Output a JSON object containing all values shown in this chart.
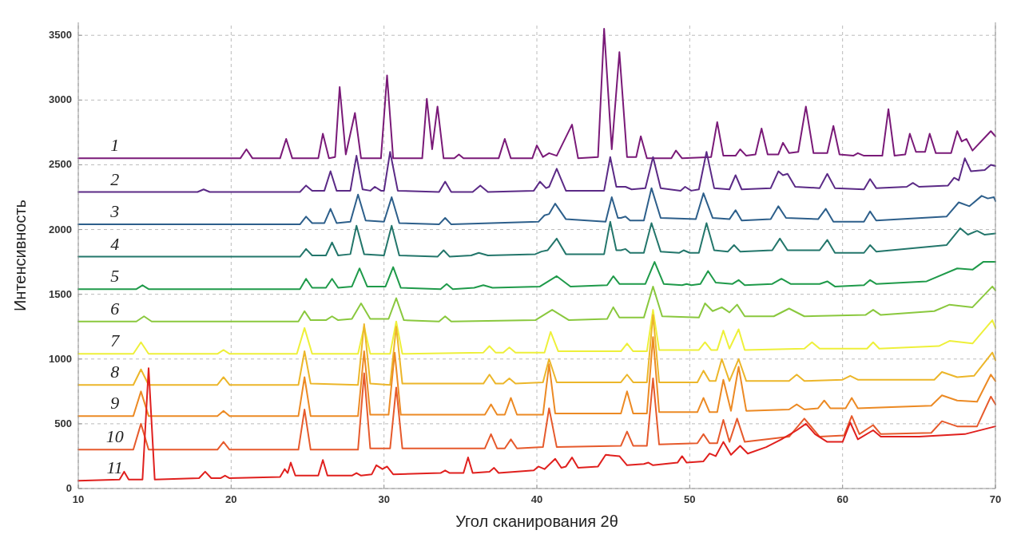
{
  "chart_data": {
    "type": "line",
    "xlabel": "Угол сканирования 2θ",
    "ylabel": "Интенсивность",
    "xlim": [
      10,
      70
    ],
    "xticks": [
      10,
      20,
      30,
      40,
      50,
      60,
      70
    ],
    "ylim": [
      0,
      3600
    ],
    "yticks": [
      0,
      500,
      1000,
      1500,
      2000,
      2500,
      3000,
      3500
    ],
    "grid": true,
    "series": [
      {
        "name": "1",
        "color": "#7a1a78",
        "x": [
          10,
          20.6,
          21,
          21.4,
          23.2,
          23.6,
          24,
          25.7,
          26,
          26.4,
          26.8,
          27.1,
          27.5,
          28.1,
          28.5,
          29.8,
          30.2,
          30.6,
          32.5,
          32.8,
          33.15,
          33.5,
          33.9,
          34.6,
          34.9,
          35.2,
          37.5,
          37.9,
          38.3,
          39.7,
          40,
          40.4,
          40.8,
          41.3,
          42.3,
          42.7,
          44,
          44.4,
          44.9,
          45.4,
          45.9,
          46.5,
          46.8,
          47.2,
          48.8,
          49.1,
          49.5,
          51.4,
          51.8,
          52.2,
          53,
          53.3,
          53.7,
          54.3,
          54.7,
          55.1,
          55.8,
          56.1,
          56.5,
          57.1,
          57.6,
          58.1,
          59,
          59.4,
          59.8,
          60.7,
          61,
          61.4,
          62.6,
          63,
          63.4,
          64.1,
          64.4,
          64.8,
          65.4,
          65.7,
          66.1,
          67.1,
          67.5,
          67.8,
          68.1,
          68.5,
          69.7,
          70
        ],
        "values": [
          2550,
          2550,
          2620,
          2550,
          2550,
          2700,
          2550,
          2550,
          2740,
          2550,
          2560,
          3100,
          2580,
          2900,
          2550,
          2550,
          3190,
          2550,
          2550,
          3010,
          2620,
          2950,
          2550,
          2550,
          2580,
          2550,
          2550,
          2700,
          2550,
          2550,
          2650,
          2560,
          2590,
          2570,
          2810,
          2550,
          2560,
          3550,
          2620,
          3370,
          2560,
          2560,
          2720,
          2550,
          2550,
          2610,
          2550,
          2560,
          2830,
          2570,
          2570,
          2620,
          2570,
          2580,
          2780,
          2580,
          2580,
          2670,
          2590,
          2600,
          2950,
          2590,
          2590,
          2800,
          2580,
          2570,
          2590,
          2570,
          2570,
          2930,
          2570,
          2580,
          2740,
          2600,
          2600,
          2740,
          2590,
          2590,
          2760,
          2680,
          2700,
          2610,
          2760,
          2720
        ]
      },
      {
        "name": "2",
        "color": "#5b2a86",
        "x": [
          10,
          17.8,
          18.2,
          18.6,
          24.5,
          24.9,
          25.3,
          26.1,
          26.5,
          26.9,
          27.8,
          28.2,
          28.6,
          29.1,
          29.4,
          29.8,
          30,
          30.4,
          30.9,
          33.6,
          34,
          34.4,
          35.8,
          36.3,
          36.8,
          39.8,
          40.2,
          40.6,
          40.8,
          41.3,
          41.9,
          44.4,
          44.8,
          45.2,
          45.5,
          45.8,
          46.2,
          47.1,
          47.6,
          48.1,
          49.4,
          49.7,
          50.1,
          50.6,
          51.1,
          51.6,
          52.6,
          53,
          53.4,
          55.3,
          55.8,
          56.1,
          56.4,
          56.9,
          58.5,
          59,
          59.5,
          61.4,
          61.8,
          62.2,
          64.2,
          64.6,
          65,
          66.9,
          67.3,
          67.6,
          68,
          68.4,
          69.3,
          69.7,
          70
        ],
        "values": [
          2290,
          2290,
          2310,
          2290,
          2290,
          2340,
          2300,
          2300,
          2450,
          2300,
          2300,
          2570,
          2310,
          2300,
          2330,
          2300,
          2300,
          2600,
          2300,
          2290,
          2370,
          2290,
          2290,
          2340,
          2290,
          2300,
          2370,
          2320,
          2330,
          2470,
          2300,
          2300,
          2560,
          2330,
          2330,
          2330,
          2310,
          2320,
          2560,
          2320,
          2300,
          2330,
          2300,
          2310,
          2600,
          2320,
          2310,
          2420,
          2310,
          2320,
          2450,
          2420,
          2430,
          2330,
          2320,
          2430,
          2320,
          2310,
          2390,
          2320,
          2330,
          2360,
          2330,
          2340,
          2400,
          2380,
          2550,
          2450,
          2460,
          2500,
          2490
        ]
      },
      {
        "name": "3",
        "color": "#2d5f8b",
        "x": [
          10,
          24.5,
          24.9,
          25.3,
          26.1,
          26.5,
          26.9,
          27.8,
          28.3,
          28.8,
          30,
          30.5,
          31,
          33.6,
          34,
          34.4,
          40.1,
          40.5,
          40.8,
          41.2,
          41.9,
          44.5,
          44.9,
          45.3,
          45.5,
          45.8,
          46.1,
          47,
          47.5,
          48.1,
          50.4,
          50.9,
          51.5,
          52.6,
          53,
          53.4,
          55.3,
          55.8,
          56.3,
          58.4,
          58.9,
          59.4,
          61.4,
          61.8,
          62.2,
          66.8,
          67.6,
          68.3,
          69.1,
          69.5,
          69.9,
          70
        ],
        "values": [
          2040,
          2040,
          2100,
          2050,
          2050,
          2160,
          2050,
          2060,
          2270,
          2070,
          2060,
          2250,
          2050,
          2040,
          2090,
          2040,
          2060,
          2110,
          2120,
          2200,
          2080,
          2060,
          2250,
          2090,
          2090,
          2100,
          2070,
          2070,
          2320,
          2090,
          2080,
          2280,
          2090,
          2080,
          2150,
          2070,
          2080,
          2180,
          2090,
          2080,
          2160,
          2060,
          2060,
          2140,
          2070,
          2100,
          2210,
          2180,
          2260,
          2240,
          2250,
          2220
        ]
      },
      {
        "name": "4",
        "color": "#23766b",
        "x": [
          10,
          24.5,
          24.9,
          25.3,
          26.2,
          26.6,
          27,
          27.8,
          28.2,
          28.7,
          30,
          30.5,
          31,
          33.5,
          33.9,
          34.3,
          35.7,
          36.2,
          36.8,
          39.9,
          40.3,
          40.7,
          41.3,
          41.9,
          44.4,
          44.8,
          45.2,
          45.5,
          45.8,
          46.1,
          47,
          47.5,
          48.1,
          49.3,
          49.6,
          50,
          50.6,
          51.1,
          51.6,
          52.5,
          52.9,
          53.3,
          55.4,
          55.9,
          56.4,
          58.5,
          59,
          59.5,
          61.4,
          61.8,
          62.2,
          66.8,
          67.7,
          68.2,
          68.8,
          69.3,
          70
        ],
        "values": [
          1790,
          1790,
          1850,
          1800,
          1800,
          1900,
          1800,
          1810,
          2030,
          1810,
          1800,
          2030,
          1800,
          1790,
          1840,
          1790,
          1800,
          1820,
          1800,
          1810,
          1830,
          1840,
          1930,
          1810,
          1810,
          2060,
          1840,
          1840,
          1850,
          1820,
          1820,
          2050,
          1830,
          1820,
          1840,
          1820,
          1820,
          2050,
          1840,
          1830,
          1880,
          1830,
          1840,
          1930,
          1840,
          1840,
          1920,
          1820,
          1820,
          1880,
          1830,
          1880,
          2010,
          1960,
          1990,
          1960,
          1970
        ]
      },
      {
        "name": "5",
        "color": "#1f9a4a",
        "x": [
          10,
          13.8,
          14.2,
          14.6,
          24.5,
          24.9,
          25.3,
          26.2,
          26.6,
          27,
          27.9,
          28.4,
          28.9,
          30.1,
          30.6,
          31.1,
          33.7,
          34.1,
          34.5,
          35.9,
          36.5,
          37.1,
          40.2,
          41.3,
          42.2,
          44.6,
          45,
          45.4,
          47.1,
          47.7,
          48.3,
          49.5,
          49.8,
          50.1,
          50.7,
          51.2,
          51.7,
          52.8,
          53.2,
          53.6,
          55.4,
          56,
          56.6,
          58.5,
          59,
          59.5,
          61.4,
          61.8,
          62.2,
          65.5,
          67.5,
          68.5,
          69.2,
          70
        ],
        "values": [
          1540,
          1540,
          1570,
          1540,
          1540,
          1620,
          1550,
          1550,
          1620,
          1550,
          1560,
          1700,
          1560,
          1560,
          1710,
          1550,
          1540,
          1580,
          1540,
          1550,
          1570,
          1550,
          1560,
          1640,
          1560,
          1570,
          1640,
          1580,
          1580,
          1750,
          1580,
          1570,
          1580,
          1570,
          1580,
          1680,
          1590,
          1580,
          1610,
          1570,
          1580,
          1620,
          1580,
          1580,
          1600,
          1560,
          1570,
          1610,
          1580,
          1600,
          1700,
          1690,
          1750,
          1750
        ]
      },
      {
        "name": "6",
        "color": "#8ac83e",
        "x": [
          10,
          13.8,
          14.3,
          14.8,
          24.4,
          24.8,
          25.2,
          26.2,
          26.6,
          27,
          27.9,
          28.5,
          29.1,
          30.3,
          30.8,
          31.3,
          33.6,
          34,
          34.4,
          39.9,
          41,
          42.1,
          44.6,
          45,
          45.4,
          47,
          47.6,
          48.2,
          50.6,
          51,
          51.5,
          52.1,
          52.6,
          53.1,
          53.6,
          55.5,
          56.5,
          57.5,
          61.5,
          62,
          62.5,
          66,
          67,
          68.5,
          69.8,
          70
        ],
        "values": [
          1290,
          1290,
          1330,
          1290,
          1290,
          1370,
          1300,
          1300,
          1330,
          1300,
          1310,
          1430,
          1310,
          1310,
          1470,
          1300,
          1290,
          1330,
          1290,
          1300,
          1380,
          1300,
          1310,
          1400,
          1320,
          1320,
          1560,
          1330,
          1320,
          1430,
          1370,
          1400,
          1360,
          1420,
          1330,
          1330,
          1390,
          1330,
          1340,
          1380,
          1340,
          1370,
          1420,
          1400,
          1560,
          1530
        ]
      },
      {
        "name": "7",
        "color": "#eef03a",
        "x": [
          10,
          13.6,
          14.1,
          14.6,
          19.1,
          19.5,
          19.9,
          24.3,
          24.8,
          25.3,
          28.3,
          28.7,
          29.1,
          30.4,
          30.8,
          31.2,
          36.5,
          36.9,
          37.3,
          37.8,
          38.2,
          38.6,
          40.5,
          40.9,
          41.4,
          45.5,
          45.9,
          46.3,
          47.2,
          47.6,
          48,
          50.6,
          51,
          51.4,
          51.8,
          52.2,
          52.6,
          53.2,
          53.6,
          57.5,
          58,
          58.5,
          61.6,
          62,
          62.4,
          66.3,
          67,
          68.5,
          69.8,
          70
        ],
        "values": [
          1040,
          1040,
          1130,
          1040,
          1040,
          1070,
          1040,
          1040,
          1240,
          1040,
          1040,
          1250,
          1040,
          1040,
          1290,
          1040,
          1050,
          1100,
          1050,
          1050,
          1090,
          1050,
          1050,
          1210,
          1060,
          1060,
          1120,
          1060,
          1060,
          1380,
          1070,
          1070,
          1130,
          1070,
          1070,
          1220,
          1080,
          1230,
          1070,
          1080,
          1130,
          1080,
          1080,
          1130,
          1080,
          1100,
          1140,
          1120,
          1300,
          1240
        ]
      },
      {
        "name": "8",
        "color": "#ecb62a",
        "x": [
          10,
          13.6,
          14.1,
          14.6,
          19.1,
          19.5,
          19.9,
          24.4,
          24.8,
          25.2,
          28.3,
          28.7,
          29.1,
          30.4,
          30.8,
          31.2,
          36.5,
          36.9,
          37.3,
          37.8,
          38.2,
          38.6,
          40.4,
          40.8,
          41.3,
          45.5,
          45.9,
          46.3,
          47.2,
          47.6,
          48,
          50.5,
          50.9,
          51.3,
          51.7,
          52.1,
          52.6,
          53.2,
          53.7,
          56.5,
          57,
          57.5,
          60,
          60.5,
          61,
          66,
          66.5,
          67.5,
          68.6,
          69.8,
          70
        ],
        "values": [
          800,
          800,
          920,
          800,
          800,
          860,
          800,
          800,
          1060,
          810,
          800,
          1270,
          810,
          800,
          1250,
          810,
          810,
          880,
          810,
          810,
          850,
          810,
          820,
          1000,
          820,
          820,
          880,
          820,
          820,
          1340,
          820,
          820,
          910,
          830,
          830,
          1000,
          830,
          1000,
          830,
          830,
          880,
          830,
          840,
          870,
          840,
          840,
          900,
          860,
          870,
          1050,
          990
        ]
      },
      {
        "name": "9",
        "color": "#ec8a24",
        "x": [
          10,
          13.6,
          14.1,
          14.6,
          19.1,
          19.5,
          19.9,
          24.4,
          24.8,
          25.2,
          28.3,
          28.7,
          29.1,
          30.3,
          30.7,
          31.1,
          36.6,
          37,
          37.4,
          37.9,
          38.3,
          38.7,
          40.4,
          40.8,
          41.2,
          45.5,
          45.9,
          46.3,
          47.2,
          47.6,
          48,
          50.5,
          50.9,
          51.3,
          51.8,
          52.2,
          52.7,
          53.2,
          53.7,
          56.5,
          57,
          57.5,
          58.4,
          58.8,
          59.2,
          60.2,
          60.6,
          61,
          65.8,
          66.5,
          67.5,
          68.8,
          69.7,
          70
        ],
        "values": [
          560,
          560,
          750,
          560,
          560,
          600,
          560,
          560,
          860,
          560,
          560,
          1060,
          570,
          570,
          1050,
          570,
          570,
          650,
          570,
          570,
          700,
          570,
          570,
          960,
          580,
          580,
          750,
          580,
          580,
          1170,
          590,
          590,
          700,
          590,
          590,
          840,
          600,
          940,
          600,
          610,
          650,
          610,
          620,
          680,
          620,
          620,
          700,
          620,
          640,
          720,
          680,
          670,
          880,
          830
        ]
      },
      {
        "name": "10",
        "color": "#e65a2c",
        "x": [
          10,
          13.6,
          14.1,
          14.6,
          19.1,
          19.5,
          19.9,
          24.4,
          24.8,
          25.2,
          28.3,
          28.7,
          29.1,
          30.4,
          30.8,
          31.2,
          36.6,
          37,
          37.4,
          37.9,
          38.3,
          38.7,
          40.4,
          40.8,
          41.3,
          45.5,
          45.9,
          46.3,
          47.2,
          47.6,
          48,
          50.5,
          50.9,
          51.3,
          51.8,
          52.2,
          52.6,
          53.1,
          53.6,
          56.5,
          57.5,
          58.5,
          60.1,
          60.6,
          61.1,
          62,
          62.5,
          65.8,
          66.5,
          67.5,
          68.8,
          69.7,
          70
        ],
        "values": [
          300,
          300,
          500,
          300,
          300,
          360,
          300,
          300,
          610,
          300,
          300,
          890,
          310,
          310,
          780,
          310,
          310,
          420,
          310,
          310,
          380,
          310,
          320,
          620,
          320,
          330,
          440,
          330,
          330,
          850,
          340,
          350,
          420,
          350,
          350,
          530,
          360,
          540,
          360,
          400,
          540,
          400,
          410,
          560,
          420,
          490,
          420,
          430,
          520,
          480,
          480,
          710,
          650
        ]
      },
      {
        "name": "11",
        "color": "#e0201e",
        "x": [
          10,
          12.7,
          13,
          13.3,
          14.2,
          14.6,
          15,
          17.9,
          18.3,
          18.7,
          19.3,
          19.6,
          19.9,
          23.2,
          23.5,
          23.7,
          23.9,
          24.2,
          25.7,
          26,
          26.3,
          27.9,
          28.2,
          28.5,
          29.2,
          29.5,
          29.9,
          30.2,
          30.6,
          33.7,
          34,
          34.3,
          35.2,
          35.5,
          35.8,
          36.9,
          37.2,
          37.5,
          39.8,
          40.1,
          40.5,
          41.2,
          41.6,
          41.9,
          42.3,
          42.7,
          44,
          44.5,
          45.4,
          45.9,
          47,
          47.3,
          47.6,
          49.2,
          49.5,
          49.8,
          50.9,
          51.3,
          51.7,
          52.2,
          52.7,
          53.3,
          53.8,
          55,
          56,
          57,
          57.6,
          58.2,
          59,
          60,
          60.5,
          61,
          62,
          62.5,
          65,
          68,
          70
        ],
        "values": [
          60,
          70,
          130,
          70,
          70,
          930,
          70,
          80,
          130,
          80,
          80,
          100,
          80,
          90,
          150,
          120,
          200,
          100,
          100,
          220,
          100,
          100,
          120,
          100,
          110,
          180,
          150,
          170,
          110,
          120,
          140,
          120,
          120,
          240,
          120,
          130,
          160,
          120,
          140,
          170,
          150,
          230,
          160,
          170,
          240,
          160,
          170,
          260,
          250,
          180,
          190,
          200,
          180,
          200,
          250,
          200,
          210,
          270,
          250,
          360,
          260,
          330,
          270,
          320,
          380,
          450,
          500,
          420,
          360,
          360,
          510,
          380,
          450,
          400,
          400,
          420,
          480
        ]
      }
    ]
  }
}
